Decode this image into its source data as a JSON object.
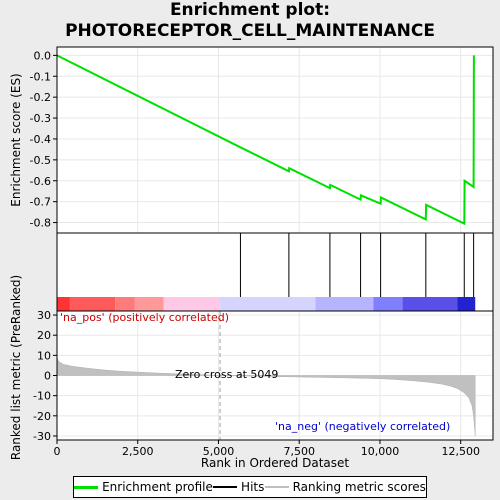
{
  "title_line1": "Enrichment plot:",
  "title_line2": "PHOTORECEPTOR_CELL_MAINTENANCE",
  "colors": {
    "enrichment": "#00e000",
    "hits": "#000000",
    "ranking": "#c0c0c0",
    "zero_cross": "#a0a0a0"
  },
  "legend": {
    "enrichment": "Enrichment profile",
    "hits": "Hits",
    "ranking": "Ranking metric scores"
  },
  "chart_data": {
    "type": "line",
    "es_panel": {
      "ylabel": "Enrichment score (ES)",
      "ylim": [
        -0.85,
        0.04
      ],
      "yticks": [
        0.0,
        -0.1,
        -0.2,
        -0.3,
        -0.4,
        -0.5,
        -0.6,
        -0.7,
        -0.8
      ],
      "ytick_labels": [
        "0.0",
        "-0.1",
        "-0.2",
        "-0.3",
        "-0.4",
        "-0.5",
        "-0.6",
        "-0.7",
        "-0.8"
      ],
      "x": [
        0,
        5680,
        7180,
        7190,
        8450,
        8460,
        9400,
        9410,
        10020,
        10030,
        11420,
        11430,
        12610,
        12620,
        12900,
        12910
      ],
      "y": [
        0.0,
        -0.44,
        -0.555,
        -0.54,
        -0.635,
        -0.62,
        -0.69,
        -0.67,
        -0.71,
        -0.68,
        -0.785,
        -0.715,
        -0.805,
        -0.6,
        -0.63,
        0.0
      ]
    },
    "hits": [
      5680,
      7180,
      8450,
      9400,
      10020,
      11420,
      12610,
      12900
    ],
    "ranking_panel": {
      "ylabel": "Ranked list metric (PreRanked)",
      "xlabel": "Rank in Ordered Dataset",
      "xlim": [
        0,
        13500
      ],
      "ylim": [
        -32,
        32
      ],
      "xticks": [
        0,
        2500,
        5000,
        7500,
        10000,
        12500
      ],
      "xtick_labels": [
        "0",
        "2,500",
        "5,000",
        "7,500",
        "10,000",
        "12,500"
      ],
      "yticks": [
        30,
        20,
        10,
        0,
        -10,
        -20,
        -30
      ],
      "ytick_labels": [
        "30",
        "20",
        "10",
        "0",
        "-10",
        "-20",
        "-30"
      ],
      "profile_x": [
        0,
        50,
        200,
        500,
        1000,
        1500,
        2000,
        2500,
        3000,
        3500,
        4000,
        4500,
        5049,
        6000,
        7000,
        8000,
        9000,
        10000,
        10500,
        11000,
        11500,
        11900,
        12200,
        12400,
        12600,
        12750,
        12850,
        12900,
        12950
      ],
      "profile_y": [
        9,
        7,
        5.5,
        4.5,
        3.5,
        2.7,
        2.1,
        1.7,
        1.3,
        1.0,
        0.7,
        0.4,
        0.0,
        -0.3,
        -0.6,
        -0.9,
        -1.2,
        -1.6,
        -2.0,
        -2.6,
        -3.3,
        -4.2,
        -5.3,
        -6.5,
        -8.5,
        -11,
        -15,
        -20,
        -30
      ],
      "pos_label": "'na_pos' (positively correlated)",
      "neg_label": "'na_neg' (negatively correlated)",
      "zero_cross_label": "Zero cross at 5049",
      "zero_cross": 5049
    },
    "color_bar": [
      {
        "from": 0,
        "to": 400,
        "color": "#ff3333"
      },
      {
        "from": 400,
        "to": 1800,
        "color": "#ff5a5a"
      },
      {
        "from": 1800,
        "to": 2400,
        "color": "#ff7a7a"
      },
      {
        "from": 2400,
        "to": 3300,
        "color": "#ff9898"
      },
      {
        "from": 3300,
        "to": 5049,
        "color": "#ffc8e6"
      },
      {
        "from": 5049,
        "to": 8000,
        "color": "#d4d4ff"
      },
      {
        "from": 8000,
        "to": 9800,
        "color": "#b4b4ff"
      },
      {
        "from": 9800,
        "to": 10700,
        "color": "#8080ff"
      },
      {
        "from": 10700,
        "to": 12400,
        "color": "#5a50e8"
      },
      {
        "from": 12400,
        "to": 12950,
        "color": "#2222d0"
      }
    ]
  }
}
